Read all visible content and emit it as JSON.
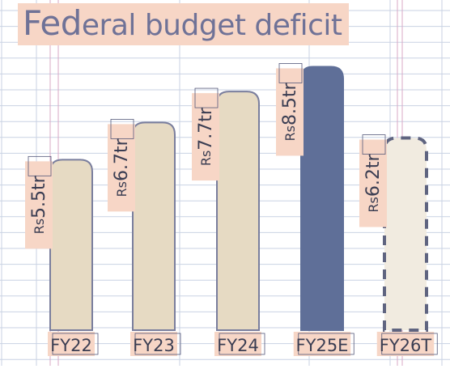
{
  "chart_data": {
    "type": "bar",
    "title": "Federal budget deficit",
    "categories": [
      "FY22",
      "FY23",
      "FY24",
      "FY25E",
      "FY26T"
    ],
    "values": [
      5.5,
      6.7,
      7.7,
      8.5,
      6.2
    ],
    "labels": [
      "Rs5.5tr",
      "Rs6.7tr",
      "Rs7.7tr",
      "Rs8.5tr",
      "Rs6.2tr"
    ],
    "unit": "Rs trillion",
    "highlight": {
      "category": "FY25E",
      "color": "#5f6f98"
    },
    "target": {
      "category": "FY26T",
      "style": "dashed outline"
    },
    "colors": {
      "bar": "#e6dac3",
      "bar_outline": "#7a7e9d",
      "highlight": "#5f6f98",
      "target_fill": "#f1ebe0",
      "label_bg": "#f7d6c6",
      "text": "#3a3d52",
      "grid": "#c9d2e3"
    },
    "grid": true
  }
}
